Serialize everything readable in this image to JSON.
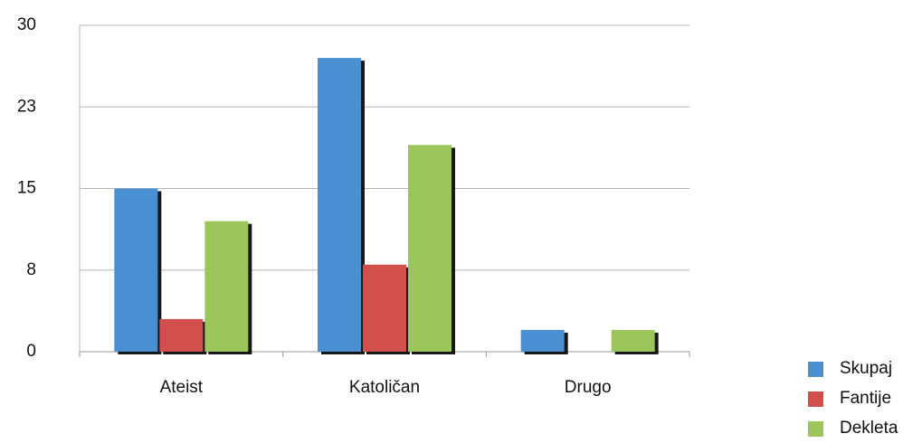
{
  "chart_data": {
    "type": "bar",
    "categories": [
      "Ateist",
      "Katoličan",
      "Drugo"
    ],
    "series": [
      {
        "name": "Skupaj",
        "color": "#4a8fd1",
        "values": [
          15,
          27,
          2
        ]
      },
      {
        "name": "Fantije",
        "color": "#d2504b",
        "values": [
          3,
          8,
          0
        ]
      },
      {
        "name": "Dekleta",
        "color": "#9cc55c",
        "values": [
          12,
          19,
          2
        ]
      }
    ],
    "ylim": [
      0,
      30
    ],
    "yticks": [
      0,
      {
        "value": 7.5,
        "label": "8"
      },
      15,
      {
        "value": 22.5,
        "label": "23"
      },
      30
    ],
    "grid": true,
    "legend": "bottom-right"
  }
}
